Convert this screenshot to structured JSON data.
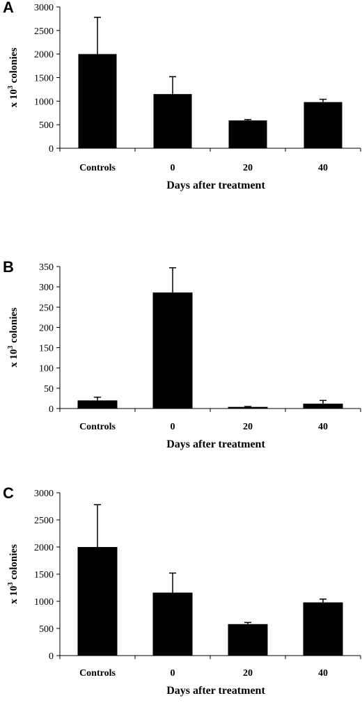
{
  "chart_data": [
    {
      "type": "bar",
      "panel_label": "A",
      "categories": [
        "Controls",
        "0",
        "20",
        "40"
      ],
      "values": [
        2000,
        1150,
        590,
        980
      ],
      "errors": [
        780,
        370,
        20,
        60
      ],
      "yticks": [
        0,
        500,
        1000,
        1500,
        2000,
        2500,
        3000
      ],
      "ylim": [
        0,
        3000
      ],
      "ylabel": "x 10 colonies",
      "ylabel_sup": "3",
      "xlabel": "Days after treatment",
      "bar_color": "#000000"
    },
    {
      "type": "bar",
      "panel_label": "B",
      "categories": [
        "Controls",
        "0",
        "20",
        "40"
      ],
      "values": [
        20,
        286,
        4,
        12
      ],
      "errors": [
        8,
        61,
        1,
        8
      ],
      "yticks": [
        0,
        50,
        100,
        150,
        200,
        250,
        300,
        350
      ],
      "ylim": [
        0,
        350
      ],
      "ylabel": "x 10 colonies",
      "ylabel_sup": "3",
      "xlabel": "Days after treatment",
      "bar_color": "#000000"
    },
    {
      "type": "bar",
      "panel_label": "C",
      "categories": [
        "Controls",
        "0",
        "20",
        "40"
      ],
      "values": [
        2000,
        1160,
        580,
        980
      ],
      "errors": [
        780,
        360,
        30,
        60
      ],
      "yticks": [
        0,
        500,
        1000,
        1500,
        2000,
        2500,
        3000
      ],
      "ylim": [
        0,
        3000
      ],
      "ylabel": "x 10 colonies",
      "ylabel_sup": "3",
      "xlabel": "Days after treatment",
      "bar_color": "#000000"
    }
  ]
}
